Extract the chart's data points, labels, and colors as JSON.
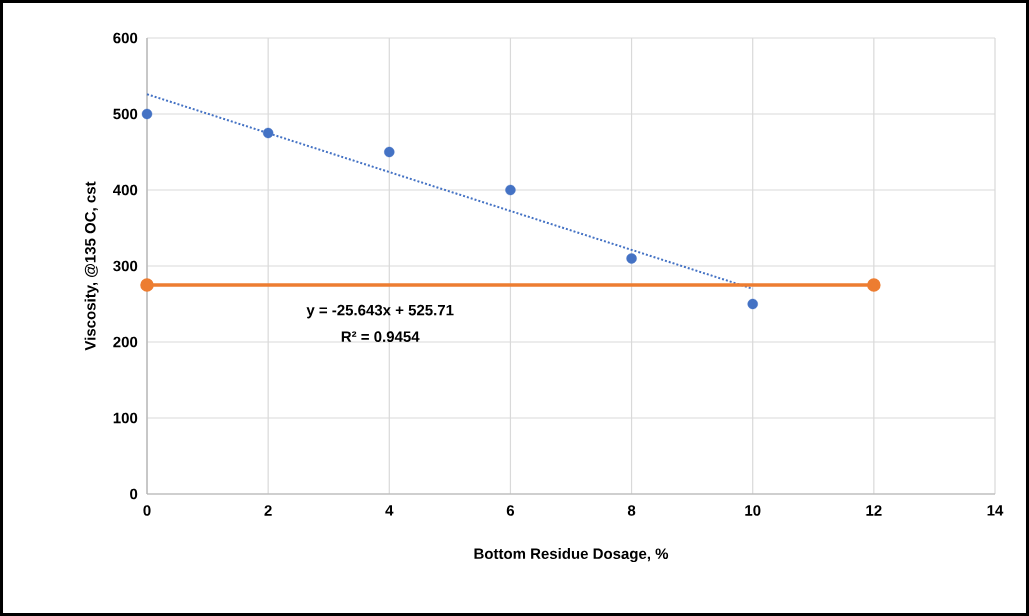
{
  "chart_data": {
    "type": "scatter",
    "xlabel": "Bottom Residue Dosage, %",
    "ylabel": "Viscosity, @135 OC, cst",
    "xlim": [
      0,
      14
    ],
    "ylim": [
      0,
      600
    ],
    "xticks": [
      0,
      2,
      4,
      6,
      8,
      10,
      12,
      14
    ],
    "yticks": [
      0,
      100,
      200,
      300,
      400,
      500,
      600
    ],
    "grid": true,
    "series": [
      {
        "color": "#4472c4",
        "marker": "circle",
        "x": [
          0,
          2,
          4,
          6,
          8,
          10
        ],
        "values": [
          500,
          475,
          450,
          400,
          310,
          250
        ]
      },
      {
        "type": "line",
        "color": "#4472c4",
        "marker": "none",
        "line_style": "dotted",
        "x": [
          0,
          10
        ],
        "values": [
          526,
          270
        ]
      },
      {
        "type": "line",
        "color": "#ed7d31",
        "marker": "circle",
        "line_style": "solid",
        "x": [
          0,
          12
        ],
        "values": [
          275,
          275
        ]
      }
    ],
    "annotations": [
      "y = -25.643x + 525.71",
      "R² = 0.9454"
    ]
  }
}
